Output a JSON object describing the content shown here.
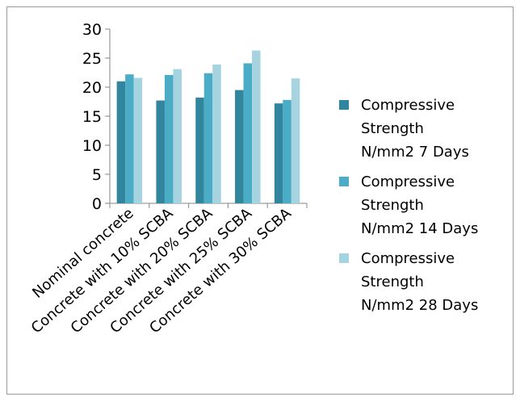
{
  "chart_data": {
    "type": "bar",
    "categories": [
      "Nominal concrete",
      "Concrete with 10% SCBA",
      "Concrete with 20% SCBA",
      "Concrete with 25% SCBA",
      "Concrete with 30% SCBA"
    ],
    "series": [
      {
        "name": "Compressive Strength N/mm2 7 Days",
        "name_lines": [
          "Compressive",
          "Strength",
          "N/mm2 7 Days"
        ],
        "color": "#31859c",
        "values": [
          21.0,
          17.7,
          18.2,
          19.5,
          17.2
        ]
      },
      {
        "name": "Compressive Strength N/mm2 14 Days",
        "name_lines": [
          "Compressive",
          "Strength",
          "N/mm2 14 Days"
        ],
        "color": "#4bacc6",
        "values": [
          22.2,
          22.1,
          22.4,
          24.1,
          17.8
        ]
      },
      {
        "name": "Compressive Strength N/mm2 28 Days",
        "name_lines": [
          "Compressive",
          "Strength",
          "N/mm2 28 Days"
        ],
        "color": "#a5d3e0",
        "values": [
          21.6,
          23.1,
          23.9,
          26.3,
          21.5
        ]
      }
    ],
    "ylim": [
      0,
      30
    ],
    "yticks": [
      0,
      5,
      10,
      15,
      20,
      25,
      30
    ],
    "grid": false,
    "legend_position": "right",
    "title": "",
    "xlabel": "",
    "ylabel": ""
  }
}
